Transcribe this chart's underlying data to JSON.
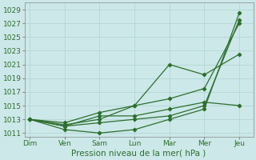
{
  "title": "",
  "xlabel": "Pression niveau de la mer( hPa )",
  "background_color": "#cce8e8",
  "grid_color": "#b8d8d8",
  "line_color": "#2d6e2d",
  "x_labels": [
    "Dim",
    "Ven",
    "Sam",
    "Lun",
    "Mar",
    "Mer",
    "Jeu"
  ],
  "x_positions": [
    0,
    1,
    2,
    3,
    4,
    5,
    6
  ],
  "ylim": [
    1010.5,
    1030.0
  ],
  "yticks": [
    1011,
    1013,
    1015,
    1017,
    1019,
    1021,
    1023,
    1025,
    1027,
    1029
  ],
  "series": [
    [
      1013.0,
      1012.0,
      1012.5,
      1013.0,
      1013.5,
      1015.0,
      1027.5
    ],
    [
      1013.0,
      1011.5,
      1011.0,
      1011.5,
      1013.0,
      1014.5,
      1028.5
    ],
    [
      1013.0,
      1012.5,
      1014.0,
      1015.0,
      1016.0,
      1017.5,
      1027.0
    ],
    [
      1013.0,
      1012.0,
      1013.5,
      1013.5,
      1014.5,
      1015.5,
      1015.0
    ],
    [
      1013.0,
      1012.2,
      1013.0,
      1015.0,
      1021.0,
      1019.5,
      1022.5
    ]
  ],
  "tick_fontsize": 6.5,
  "label_fontsize": 7.5
}
